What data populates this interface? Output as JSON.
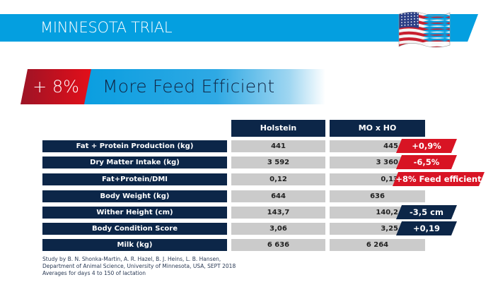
{
  "header": {
    "title": "MINNESOTA TRIAL",
    "flag_icon": "us-flag-icon",
    "brand_color": "#049fe0"
  },
  "headline": {
    "percent": "+ 8%",
    "text": "More Feed Efficient",
    "accent_red": "#d81424"
  },
  "table": {
    "columns": [
      "Holstein",
      "MO x HO"
    ],
    "rows": [
      {
        "label": "Fat + Protein Production (kg)",
        "holstein": "441",
        "cross": "445",
        "badge": "+0,9%",
        "badge_color": "red"
      },
      {
        "label": "Dry Matter Intake (kg)",
        "holstein": "3 592",
        "cross": "3 360",
        "badge": "-6,5%",
        "badge_color": "red"
      },
      {
        "label": "Fat+Protein/DMI",
        "holstein": "0,12",
        "cross": "0,13",
        "badge": "+8% Feed efficient",
        "badge_color": "red"
      },
      {
        "label": "Body Weight (kg)",
        "holstein": "644",
        "cross": "636",
        "badge": null,
        "badge_color": null
      },
      {
        "label": "Wither Height (cm)",
        "holstein": "143,7",
        "cross": "140,2",
        "badge": "-3,5 cm",
        "badge_color": "navy"
      },
      {
        "label": "Body Condition Score",
        "holstein": "3,06",
        "cross": "3,25",
        "badge": "+0,19",
        "badge_color": "navy"
      },
      {
        "label": "Milk (kg)",
        "holstein": "6 636",
        "cross": "6 264",
        "badge": null,
        "badge_color": null
      }
    ]
  },
  "footnote": {
    "line1": "Study by B. N. Shonka-Martin, A. R. Hazel, B. J. Heins, L. B. Hansen,",
    "line2": "Department of Animal Science, University of Minnesota, USA, SEPT 2018",
    "line3": "Averages for days 4 to 150 of lactation"
  }
}
